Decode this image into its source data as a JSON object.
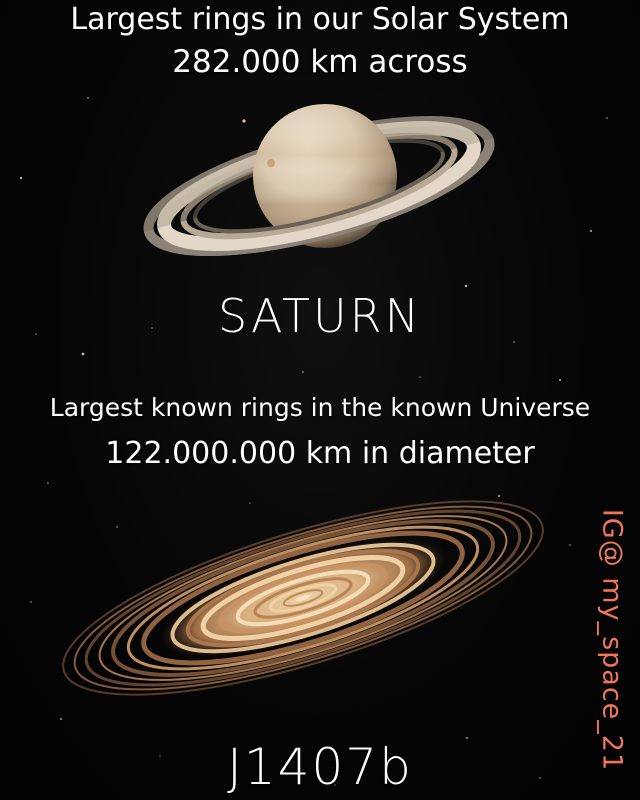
{
  "saturn": {
    "headline": "Largest rings in our Solar System",
    "measure": "282.000 km across",
    "name": "SATURN"
  },
  "j1407b": {
    "headline": "Largest known rings in the known Universe",
    "measure": "122.000.000 km in diameter",
    "name": "J1407b"
  },
  "watermark": "IG@ my_space_21",
  "colors": {
    "background": "#050505",
    "text": "#ffffff",
    "watermark": "#f0775a",
    "saturn_body": "#d9c7ad",
    "ring_warm": "#d9a56a"
  }
}
